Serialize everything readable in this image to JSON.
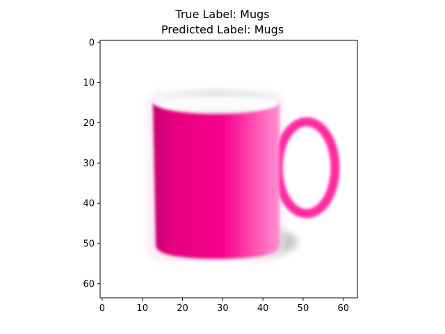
{
  "figure": {
    "title_line1": "True Label: Mugs",
    "title_line2": "Predicted Label: Mugs"
  },
  "image_axes": {
    "x_ticks": [
      0,
      10,
      20,
      30,
      40,
      50,
      60
    ],
    "y_ticks": [
      0,
      10,
      20,
      30,
      40,
      50,
      60
    ],
    "extent": [
      -0.5,
      63.5
    ],
    "colors": {
      "mug_pink": "#f5008f",
      "mug_dark": "#c80072",
      "mug_light": "#ff7fc8",
      "rim_inner": "#e9e9e9",
      "shadow": "#c8c8c8"
    }
  }
}
